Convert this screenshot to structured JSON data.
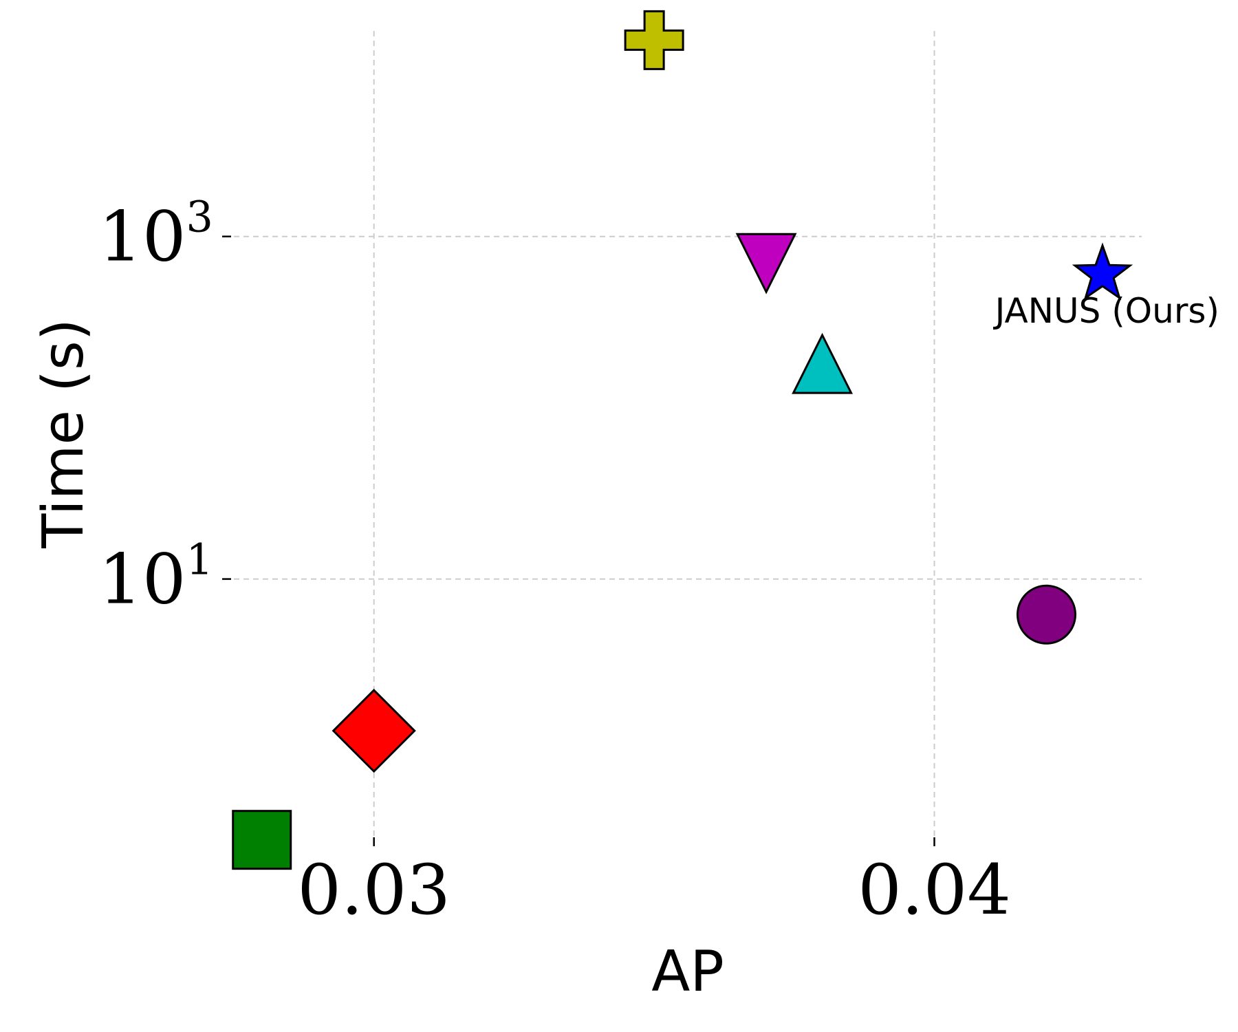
{
  "chart_data": {
    "type": "scatter",
    "xlabel": "AP",
    "ylabel": "Time (s)",
    "y_scale": "log",
    "xlim": [
      0.0275,
      0.0437
    ],
    "ylim_log10": [
      -0.5,
      4.2
    ],
    "grid": true,
    "x_ticks": [
      {
        "value": 0.03,
        "label": "0.03"
      },
      {
        "value": 0.04,
        "label": "0.04"
      }
    ],
    "y_ticks": [
      {
        "value": 10,
        "base": "10",
        "exp": "1"
      },
      {
        "value": 1000,
        "base": "10",
        "exp": "3"
      }
    ],
    "points": [
      {
        "marker": "plus",
        "color": "#bfbf00",
        "x": 0.035,
        "y": 14000
      },
      {
        "marker": "triangle-down",
        "color": "#bf00bf",
        "x": 0.037,
        "y": 700
      },
      {
        "marker": "triangle-up",
        "color": "#00bfbf",
        "x": 0.038,
        "y": 180
      },
      {
        "marker": "star",
        "color": "#0000ff",
        "x": 0.043,
        "y": 600,
        "label": "JANUS (Ours)"
      },
      {
        "marker": "circle",
        "color": "#800080",
        "x": 0.042,
        "y": 6.2
      },
      {
        "marker": "diamond",
        "color": "#ff0000",
        "x": 0.03,
        "y": 1.3
      },
      {
        "marker": "square",
        "color": "#008000",
        "x": 0.028,
        "y": 0.3
      }
    ]
  }
}
